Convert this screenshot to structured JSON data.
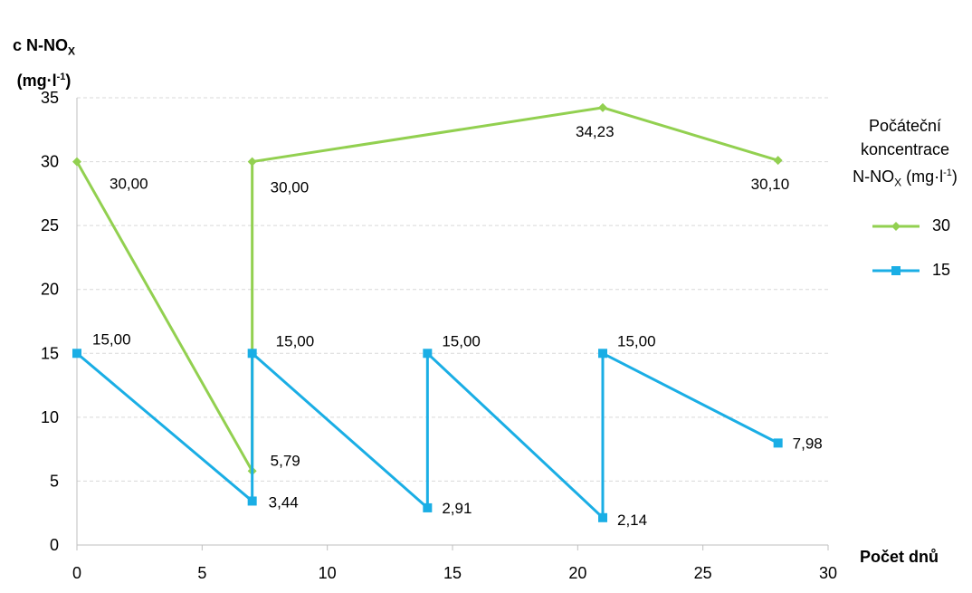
{
  "chart_data": {
    "type": "line",
    "ylabel_line1": "c N-NO",
    "ylabel_sub": "X",
    "ylabel_line2_pre": "(mg·l",
    "ylabel_sup": "-1",
    "ylabel_line2_post": ")",
    "xlabel": "Počet dnů",
    "xlim": [
      0,
      30
    ],
    "ylim": [
      0,
      35
    ],
    "xticks": [
      "0",
      "5",
      "10",
      "15",
      "20",
      "25",
      "30"
    ],
    "yticks": [
      "0",
      "5",
      "10",
      "15",
      "20",
      "25",
      "30",
      "35"
    ],
    "grid": true,
    "legend_title_line1": "Počáteční",
    "legend_title_line2": "koncentrace",
    "legend_title_line3_pre": "N-NO",
    "legend_title_sub": "X",
    "legend_title_line3_post": " (mg·l",
    "legend_title_sup": "-1",
    "legend_title_line3_end": ")",
    "legend_position": "right",
    "series": [
      {
        "name": "30",
        "color": "#92d050",
        "marker": "diamond",
        "x": [
          0,
          7,
          7,
          21,
          28
        ],
        "y": [
          30.0,
          5.79,
          30.0,
          34.23,
          30.1
        ],
        "labels": [
          "30,00",
          "5,79",
          "30,00",
          "34,23",
          "30,10"
        ]
      },
      {
        "name": "15",
        "color": "#1aaee5",
        "marker": "square",
        "x": [
          0,
          7,
          7,
          14,
          14,
          21,
          21,
          28
        ],
        "y": [
          15.0,
          3.44,
          15.0,
          2.91,
          15.0,
          2.14,
          15.0,
          7.98
        ],
        "labels": [
          "15,00",
          "3,44",
          "15,00",
          "2,91",
          "15,00",
          "2,14",
          "15,00",
          "7,98"
        ]
      }
    ]
  }
}
